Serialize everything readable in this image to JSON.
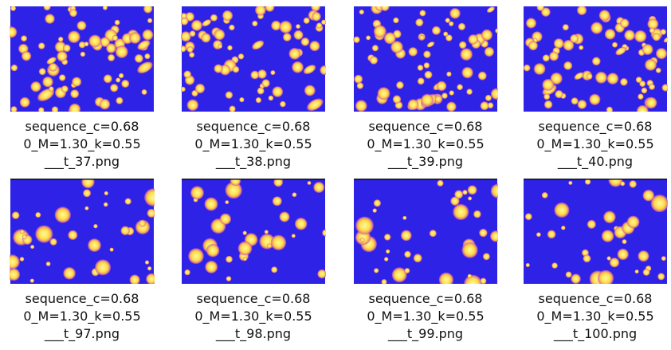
{
  "files": [
    {
      "lines": [
        "sequence_c=0.68",
        "0_M=1.30_k=0.55",
        "___t_37.png"
      ]
    },
    {
      "lines": [
        "sequence_c=0.68",
        "0_M=1.30_k=0.55",
        "___t_38.png"
      ]
    },
    {
      "lines": [
        "sequence_c=0.68",
        "0_M=1.30_k=0.55",
        "___t_39.png"
      ]
    },
    {
      "lines": [
        "sequence_c=0.68",
        "0_M=1.30_k=0.55",
        "___t_40.png"
      ]
    },
    {
      "lines": [
        "sequence_c=0.68",
        "0_M=1.30_k=0.55",
        "___t_97.png"
      ]
    },
    {
      "lines": [
        "sequence_c=0.68",
        "0_M=1.30_k=0.55",
        "___t_98.png"
      ]
    },
    {
      "lines": [
        "sequence_c=0.68",
        "0_M=1.30_k=0.55",
        "___t_99.png"
      ]
    },
    {
      "lines": [
        "sequence_c=0.68",
        "0_M=1.30_k=0.55",
        "___t_100.png"
      ]
    }
  ]
}
